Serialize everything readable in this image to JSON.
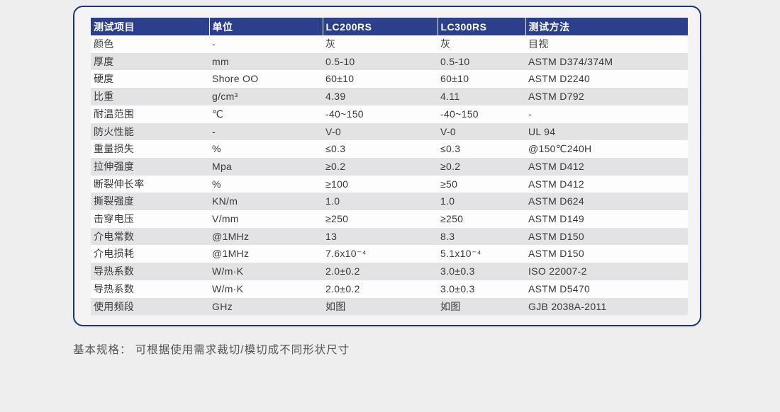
{
  "theme": {
    "page_bg": "#eeeeef",
    "card_bg": "#f4f4f5",
    "card_border": "#1e3282",
    "header_bg": "#2b3f8c",
    "header_text": "#ffffff",
    "stripe_gray": "#e3e3e5",
    "row_white": "#fdfdfd",
    "cell_text": "#37383a",
    "note_text": "#565656"
  },
  "table": {
    "headers": [
      "测试项目",
      "单位",
      "LC200RS",
      "LC300RS",
      "测试方法"
    ],
    "rows": [
      [
        "颜色",
        "-",
        "灰",
        "灰",
        "目视"
      ],
      [
        "厚度",
        "mm",
        "0.5-10",
        "0.5-10",
        "ASTM D374/374M"
      ],
      [
        "硬度",
        "Shore OO",
        "60±10",
        "60±10",
        "ASTM D2240"
      ],
      [
        "比重",
        "g/cm³",
        "4.39",
        "4.11",
        "ASTM D792"
      ],
      [
        "耐温范围",
        "℃",
        "-40~150",
        "-40~150",
        "-"
      ],
      [
        "防火性能",
        "-",
        "V-0",
        "V-0",
        "UL 94"
      ],
      [
        "重量损失",
        "%",
        "≤0.3",
        "≤0.3",
        "@150℃240H"
      ],
      [
        "拉伸强度",
        "Mpa",
        "≥0.2",
        "≥0.2",
        "ASTM D412"
      ],
      [
        "断裂伸长率",
        "%",
        "≥100",
        "≥50",
        "ASTM D412"
      ],
      [
        "撕裂强度",
        "KN/m",
        "1.0",
        "1.0",
        "ASTM D624"
      ],
      [
        "击穿电压",
        "V/mm",
        "≥250",
        "≥250",
        "ASTM D149"
      ],
      [
        "介电常数",
        "@1MHz",
        "13",
        "8.3",
        "ASTM D150"
      ],
      [
        "介电损耗",
        "@1MHz",
        "7.6x10⁻⁴",
        "5.1x10⁻⁴",
        "ASTM D150"
      ],
      [
        "导热系数",
        "W/m·K",
        "2.0±0.2",
        "3.0±0.3",
        "ISO 22007-2"
      ],
      [
        "导热系数",
        "W/m·K",
        "2.0±0.2",
        "3.0±0.3",
        "ASTM D5470"
      ],
      [
        "使用频段",
        "GHz",
        "如图",
        "如图",
        "GJB 2038A-2011"
      ]
    ]
  },
  "footer": {
    "note": "基本规格： 可根据使用需求裁切/模切成不同形状尺寸"
  }
}
